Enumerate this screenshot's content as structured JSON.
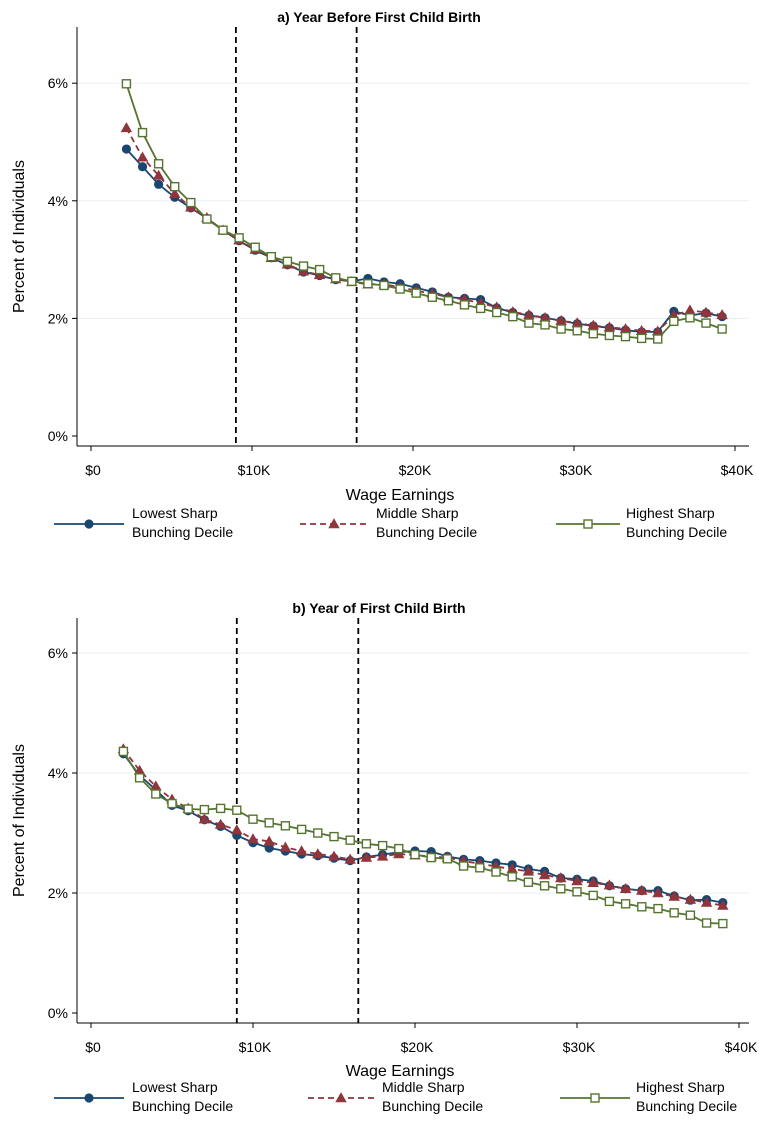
{
  "chart_data": [
    {
      "type": "line",
      "title": "a) Year Before First Child Birth",
      "xlabel": "Wage Earnings",
      "ylabel": "Percent of Individuals",
      "xlim": [
        0,
        40000
      ],
      "ylim": [
        0,
        6.5
      ],
      "xticks": [
        {
          "value": 0,
          "label": "$0"
        },
        {
          "value": 10000,
          "label": "$10K"
        },
        {
          "value": 20000,
          "label": "$20K"
        },
        {
          "value": 30000,
          "label": "$30K"
        },
        {
          "value": 40000,
          "label": "$40K"
        }
      ],
      "yticks": [
        {
          "value": 0,
          "label": "0%"
        },
        {
          "value": 2,
          "label": "2%"
        },
        {
          "value": 4,
          "label": "4%"
        },
        {
          "value": 6,
          "label": "6%"
        }
      ],
      "grid": true,
      "vlines": [
        9000,
        16500
      ],
      "x": [
        2200,
        3200,
        4200,
        5200,
        6200,
        7200,
        8200,
        9200,
        10200,
        11200,
        12200,
        13200,
        14200,
        15200,
        16200,
        17200,
        18200,
        19200,
        20200,
        21200,
        22200,
        23200,
        24200,
        25200,
        26200,
        27200,
        28200,
        29200,
        30200,
        31200,
        32200,
        33200,
        34200,
        35200,
        36200,
        37200,
        38200,
        39200
      ],
      "legend_position": "bottom",
      "series": [
        {
          "name": "Lowest Sharp\nBunching Decile",
          "color": "#1a476f",
          "marker": "circle",
          "dash": "solid",
          "values": [
            4.88,
            4.58,
            4.28,
            4.06,
            3.88,
            3.7,
            3.5,
            3.32,
            3.16,
            3.03,
            2.91,
            2.79,
            2.73,
            2.66,
            2.63,
            2.68,
            2.62,
            2.59,
            2.52,
            2.45,
            2.36,
            2.34,
            2.32,
            2.18,
            2.1,
            2.05,
            2.01,
            1.96,
            1.91,
            1.87,
            1.84,
            1.8,
            1.77,
            1.77,
            2.12,
            2.05,
            2.09,
            2.03
          ]
        },
        {
          "name": "Middle Sharp\nBunching Decile",
          "color": "#90353b",
          "marker": "triangle",
          "dash": "dashed",
          "values": [
            5.24,
            4.74,
            4.43,
            4.12,
            3.89,
            3.71,
            3.5,
            3.33,
            3.17,
            3.03,
            2.92,
            2.8,
            2.74,
            2.67,
            2.62,
            2.58,
            2.58,
            2.53,
            2.47,
            2.42,
            2.36,
            2.32,
            2.26,
            2.19,
            2.11,
            2.06,
            2.01,
            1.96,
            1.92,
            1.88,
            1.85,
            1.82,
            1.79,
            1.78,
            2.05,
            2.14,
            2.1,
            2.06
          ]
        },
        {
          "name": "Highest Sharp\nBunching Decile",
          "color": "#55752f",
          "marker": "square",
          "dash": "solid",
          "values": [
            5.99,
            5.16,
            4.63,
            4.24,
            3.97,
            3.69,
            3.5,
            3.37,
            3.21,
            3.05,
            2.97,
            2.89,
            2.83,
            2.69,
            2.63,
            2.59,
            2.56,
            2.5,
            2.43,
            2.36,
            2.3,
            2.23,
            2.17,
            2.1,
            2.03,
            1.92,
            1.89,
            1.82,
            1.79,
            1.74,
            1.71,
            1.69,
            1.66,
            1.65,
            1.95,
            2.01,
            1.92,
            1.82
          ]
        }
      ]
    },
    {
      "type": "line",
      "title": "b) Year of First Child Birth",
      "xlabel": "Wage Earnings",
      "ylabel": "Percent of Individuals",
      "xlim": [
        0,
        40000
      ],
      "ylim": [
        0,
        6.5
      ],
      "xticks": [
        {
          "value": 0,
          "label": "$0"
        },
        {
          "value": 10000,
          "label": "$10K"
        },
        {
          "value": 20000,
          "label": "$20K"
        },
        {
          "value": 30000,
          "label": "$30K"
        },
        {
          "value": 40000,
          "label": "$40K"
        }
      ],
      "yticks": [
        {
          "value": 0,
          "label": "0%"
        },
        {
          "value": 2,
          "label": "2%"
        },
        {
          "value": 4,
          "label": "4%"
        },
        {
          "value": 6,
          "label": "6%"
        }
      ],
      "grid": true,
      "vlines": [
        9000,
        16500
      ],
      "x": [
        2000,
        3000,
        4000,
        5000,
        6000,
        7000,
        8000,
        9000,
        10000,
        11000,
        12000,
        13000,
        14000,
        15000,
        16000,
        17000,
        18000,
        19000,
        20000,
        21000,
        22000,
        23000,
        24000,
        25000,
        26000,
        27000,
        28000,
        29000,
        30000,
        31000,
        32000,
        33000,
        34000,
        35000,
        36000,
        37000,
        38000,
        39000
      ],
      "legend_position": "bottom",
      "series": [
        {
          "name": "Lowest Sharp\nBunching Decile",
          "color": "#1a476f",
          "marker": "circle",
          "dash": "solid",
          "values": [
            4.32,
            3.96,
            3.72,
            3.46,
            3.37,
            3.22,
            3.11,
            2.96,
            2.84,
            2.75,
            2.7,
            2.65,
            2.62,
            2.58,
            2.54,
            2.6,
            2.64,
            2.68,
            2.7,
            2.69,
            2.61,
            2.56,
            2.54,
            2.5,
            2.47,
            2.4,
            2.36,
            2.25,
            2.23,
            2.2,
            2.12,
            2.07,
            2.04,
            2.04,
            1.95,
            1.88,
            1.89,
            1.84
          ]
        },
        {
          "name": "Middle Sharp\nBunching Decile",
          "color": "#90353b",
          "marker": "triangle",
          "dash": "dashed",
          "values": [
            4.4,
            4.04,
            3.78,
            3.56,
            3.41,
            3.23,
            3.14,
            3.05,
            2.9,
            2.86,
            2.76,
            2.7,
            2.65,
            2.61,
            2.56,
            2.59,
            2.61,
            2.65,
            2.63,
            2.61,
            2.59,
            2.53,
            2.49,
            2.44,
            2.4,
            2.36,
            2.3,
            2.25,
            2.2,
            2.17,
            2.13,
            2.07,
            2.04,
            2.0,
            1.94,
            1.89,
            1.84,
            1.79
          ]
        },
        {
          "name": "Highest Sharp\nBunching Decile",
          "color": "#55752f",
          "marker": "square",
          "dash": "solid",
          "values": [
            4.36,
            3.92,
            3.65,
            3.49,
            3.4,
            3.39,
            3.41,
            3.38,
            3.23,
            3.17,
            3.12,
            3.06,
            3.0,
            2.94,
            2.88,
            2.82,
            2.79,
            2.74,
            2.64,
            2.59,
            2.57,
            2.45,
            2.42,
            2.35,
            2.27,
            2.18,
            2.12,
            2.07,
            2.02,
            1.96,
            1.86,
            1.82,
            1.77,
            1.74,
            1.67,
            1.63,
            1.5,
            1.49
          ]
        }
      ]
    }
  ]
}
